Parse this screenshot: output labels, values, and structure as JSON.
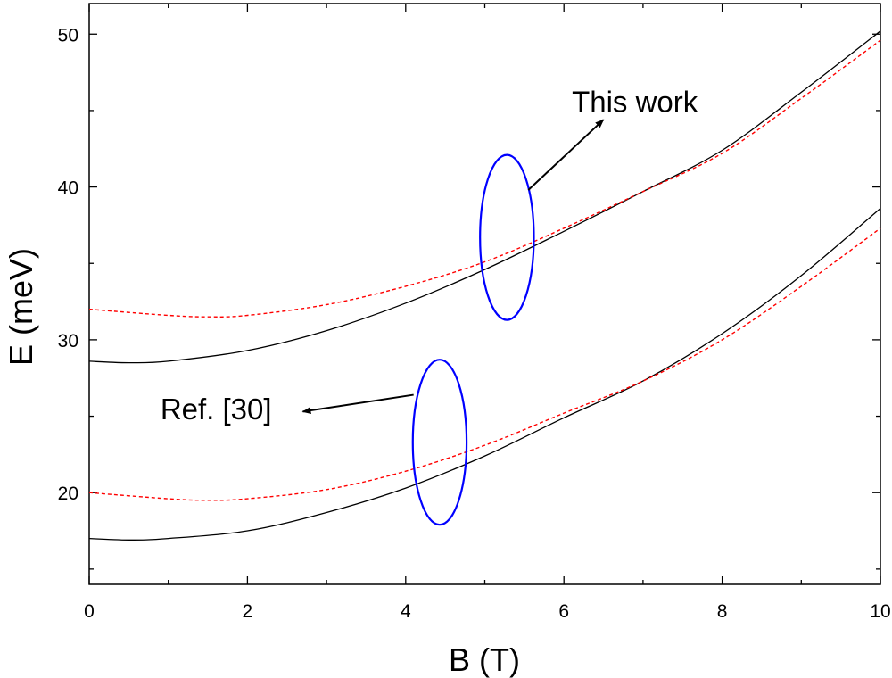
{
  "chart_data": {
    "type": "line",
    "xlabel": "B (T)",
    "ylabel": "E (meV)",
    "xlim": [
      0,
      10
    ],
    "ylim": [
      14,
      52
    ],
    "x_ticks": [
      0,
      2,
      4,
      6,
      8,
      10
    ],
    "y_ticks": [
      20,
      30,
      40,
      50
    ],
    "grid": false,
    "series": [
      {
        "style": "solid",
        "color": "#000000",
        "x": [
          0,
          0.5,
          1,
          2,
          3,
          4,
          5,
          6,
          7,
          8,
          9,
          10
        ],
        "y": [
          28.6,
          28.5,
          28.6,
          29.3,
          30.6,
          32.4,
          34.6,
          37.1,
          39.7,
          42.4,
          46.2,
          50.2
        ]
      },
      {
        "style": "dashed",
        "color": "#ff0000",
        "x": [
          0,
          1,
          1.5,
          2,
          3,
          4,
          5,
          6,
          7,
          8,
          9,
          10
        ],
        "y": [
          32.0,
          31.6,
          31.5,
          31.6,
          32.3,
          33.5,
          35.1,
          37.3,
          39.7,
          42.2,
          45.8,
          49.6
        ]
      },
      {
        "style": "solid",
        "color": "#000000",
        "x": [
          0,
          0.5,
          1,
          2,
          3,
          4,
          5,
          6,
          7,
          8,
          9,
          10
        ],
        "y": [
          17.0,
          16.9,
          17.0,
          17.5,
          18.7,
          20.3,
          22.4,
          24.9,
          27.3,
          30.4,
          34.2,
          38.6
        ]
      },
      {
        "style": "dashed",
        "color": "#ff0000",
        "x": [
          0,
          1,
          1.5,
          2,
          3,
          4,
          5,
          6,
          7,
          8,
          9,
          10
        ],
        "y": [
          20.0,
          19.6,
          19.5,
          19.6,
          20.2,
          21.4,
          23.1,
          25.2,
          27.3,
          30.0,
          33.5,
          37.3
        ]
      }
    ],
    "annotations": [
      {
        "text": "This work",
        "x": 6.1,
        "y": 44.9,
        "arrow_from": [
          5.55,
          39.8
        ],
        "arrow_to": [
          6.5,
          44.4
        ]
      },
      {
        "text": "Ref. [30]",
        "x": 0.9,
        "y": 24.8,
        "arrow_from": [
          4.1,
          26.4
        ],
        "arrow_to": [
          2.7,
          25.3
        ]
      }
    ],
    "ellipses": [
      {
        "cx": 5.28,
        "cy": 36.7,
        "rx": 0.34,
        "ry": 5.4,
        "color": "#0000ff"
      },
      {
        "cx": 4.43,
        "cy": 23.3,
        "rx": 0.34,
        "ry": 5.4,
        "color": "#0000ff"
      }
    ]
  }
}
